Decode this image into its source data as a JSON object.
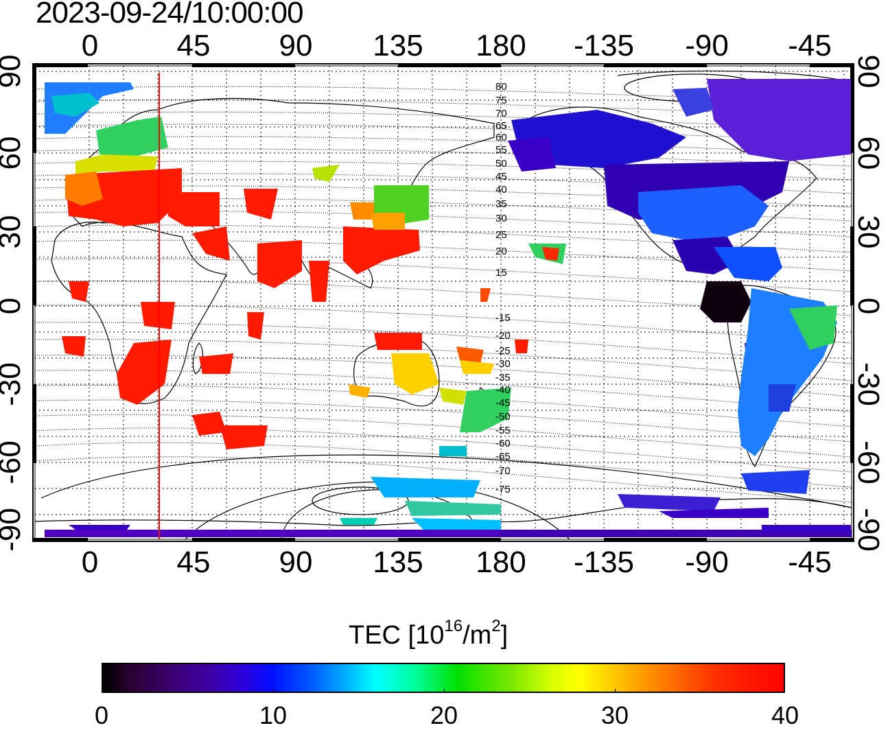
{
  "title": "2023-09-24/10:00:00",
  "axes": {
    "lon_ticks_top": [
      "0",
      "45",
      "90",
      "135",
      "180",
      "-135",
      "-90",
      "-45"
    ],
    "lon_ticks_bottom": [
      "0",
      "45",
      "90",
      "135",
      "180",
      "-135",
      "-90",
      "-45"
    ],
    "lat_ticks_left": [
      "90",
      "60",
      "30",
      "0",
      "-30",
      "-60",
      "-90"
    ],
    "lat_ticks_right": [
      "90",
      "60",
      "30",
      "0",
      "-30",
      "-60",
      "-90"
    ]
  },
  "contour_labels": [
    "80",
    "75",
    "70",
    "65",
    "60",
    "55",
    "50",
    "45",
    "40",
    "35",
    "30",
    "25",
    "20",
    "15",
    "-15",
    "-20",
    "-25",
    "-30",
    "-35",
    "-40",
    "-45",
    "-50",
    "-55",
    "-60",
    "-65",
    "-70",
    "-75"
  ],
  "colorbar": {
    "title_main": "TEC  [10",
    "title_sup1": "16",
    "title_mid": "/m",
    "title_sup2": "2",
    "title_end": "]",
    "ticks": [
      "0",
      "10",
      "20",
      "30",
      "40"
    ],
    "range": [
      0,
      40
    ]
  },
  "marker": {
    "longitude": 30,
    "color": "#ff0000"
  },
  "colors": {
    "high": "#ff0000",
    "mid": "#00e000",
    "low": "#1a00c0"
  }
}
